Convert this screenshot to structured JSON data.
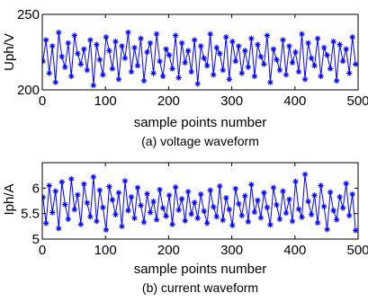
{
  "chart_data": [
    {
      "type": "line",
      "marker": "asterisk",
      "color": "#0000ff",
      "caption": "(a) voltage waveform",
      "xlabel": "sample points number",
      "ylabel": "Uph/V",
      "xlim": [
        0,
        500
      ],
      "ylim": [
        200,
        250
      ],
      "xticks": [
        "0",
        "100",
        "200",
        "300",
        "400",
        "500"
      ],
      "yticks": [
        "200",
        "250"
      ],
      "series": [
        {
          "x_start": 1,
          "x_step": 5,
          "values": [
            219,
            233,
            211,
            229,
            205,
            238,
            222,
            215,
            231,
            209,
            236,
            224,
            217,
            227,
            213,
            233,
            203,
            230,
            220,
            210,
            235,
            226,
            214,
            232,
            207,
            229,
            221,
            238,
            212,
            228,
            216,
            234,
            206,
            225,
            231,
            211,
            237,
            219,
            209,
            227,
            223,
            214,
            236,
            208,
            231,
            218,
            226,
            212,
            233,
            204,
            229,
            221,
            216,
            237,
            210,
            228,
            224,
            213,
            235,
            207,
            232,
            219,
            229,
            211,
            226,
            215,
            234,
            209,
            230,
            222,
            217,
            236,
            205,
            227,
            220,
            213,
            233,
            210,
            229,
            218,
            225,
            212,
            237,
            207,
            231,
            221,
            216,
            234,
            209,
            228,
            223,
            214,
            232,
            206,
            230,
            219,
            227,
            211,
            235,
            217
          ]
        }
      ]
    },
    {
      "type": "line",
      "marker": "asterisk",
      "color": "#0000ff",
      "caption": "(b) current waveform",
      "xlabel": "sample points number",
      "ylabel": "Iph/A",
      "xlim": [
        0,
        500
      ],
      "ylim": [
        5,
        6.5
      ],
      "xticks": [
        "0",
        "100",
        "200",
        "300",
        "400",
        "500"
      ],
      "yticks": [
        "5",
        "5.5",
        "6"
      ],
      "series": [
        {
          "x_start": 1,
          "x_step": 5,
          "values": [
            5.82,
            5.31,
            6.05,
            5.52,
            5.94,
            5.21,
            6.12,
            5.68,
            5.39,
            6.18,
            5.58,
            5.87,
            5.29,
            6.08,
            5.71,
            5.44,
            6.22,
            5.35,
            5.96,
            5.62,
            5.18,
            6.03,
            5.77,
            5.48,
            5.91,
            5.25,
            6.14,
            5.56,
            5.83,
            5.41,
            6.01,
            5.66,
            5.33,
            5.89,
            5.52,
            5.74,
            5.38,
            5.97,
            5.61,
            5.45,
            5.86,
            5.29,
            6.02,
            5.57,
            5.79,
            5.36,
            5.93,
            5.49,
            5.72,
            5.41,
            5.88,
            5.55,
            5.31,
            5.96,
            5.63,
            5.44,
            6.04,
            5.37,
            5.81,
            5.58,
            5.27,
            5.99,
            5.69,
            5.46,
            5.85,
            5.34,
            6.07,
            5.53,
            5.76,
            5.42,
            5.91,
            5.62,
            5.28,
            6.01,
            5.67,
            5.39,
            5.94,
            5.51,
            5.78,
            5.35,
            6.13,
            5.59,
            5.43,
            6.27,
            5.74,
            5.48,
            5.86,
            5.32,
            6.05,
            5.64,
            5.19,
            5.92,
            5.56,
            5.38,
            5.83,
            5.61,
            6.09,
            5.46,
            5.88,
            5.17
          ]
        }
      ]
    }
  ]
}
